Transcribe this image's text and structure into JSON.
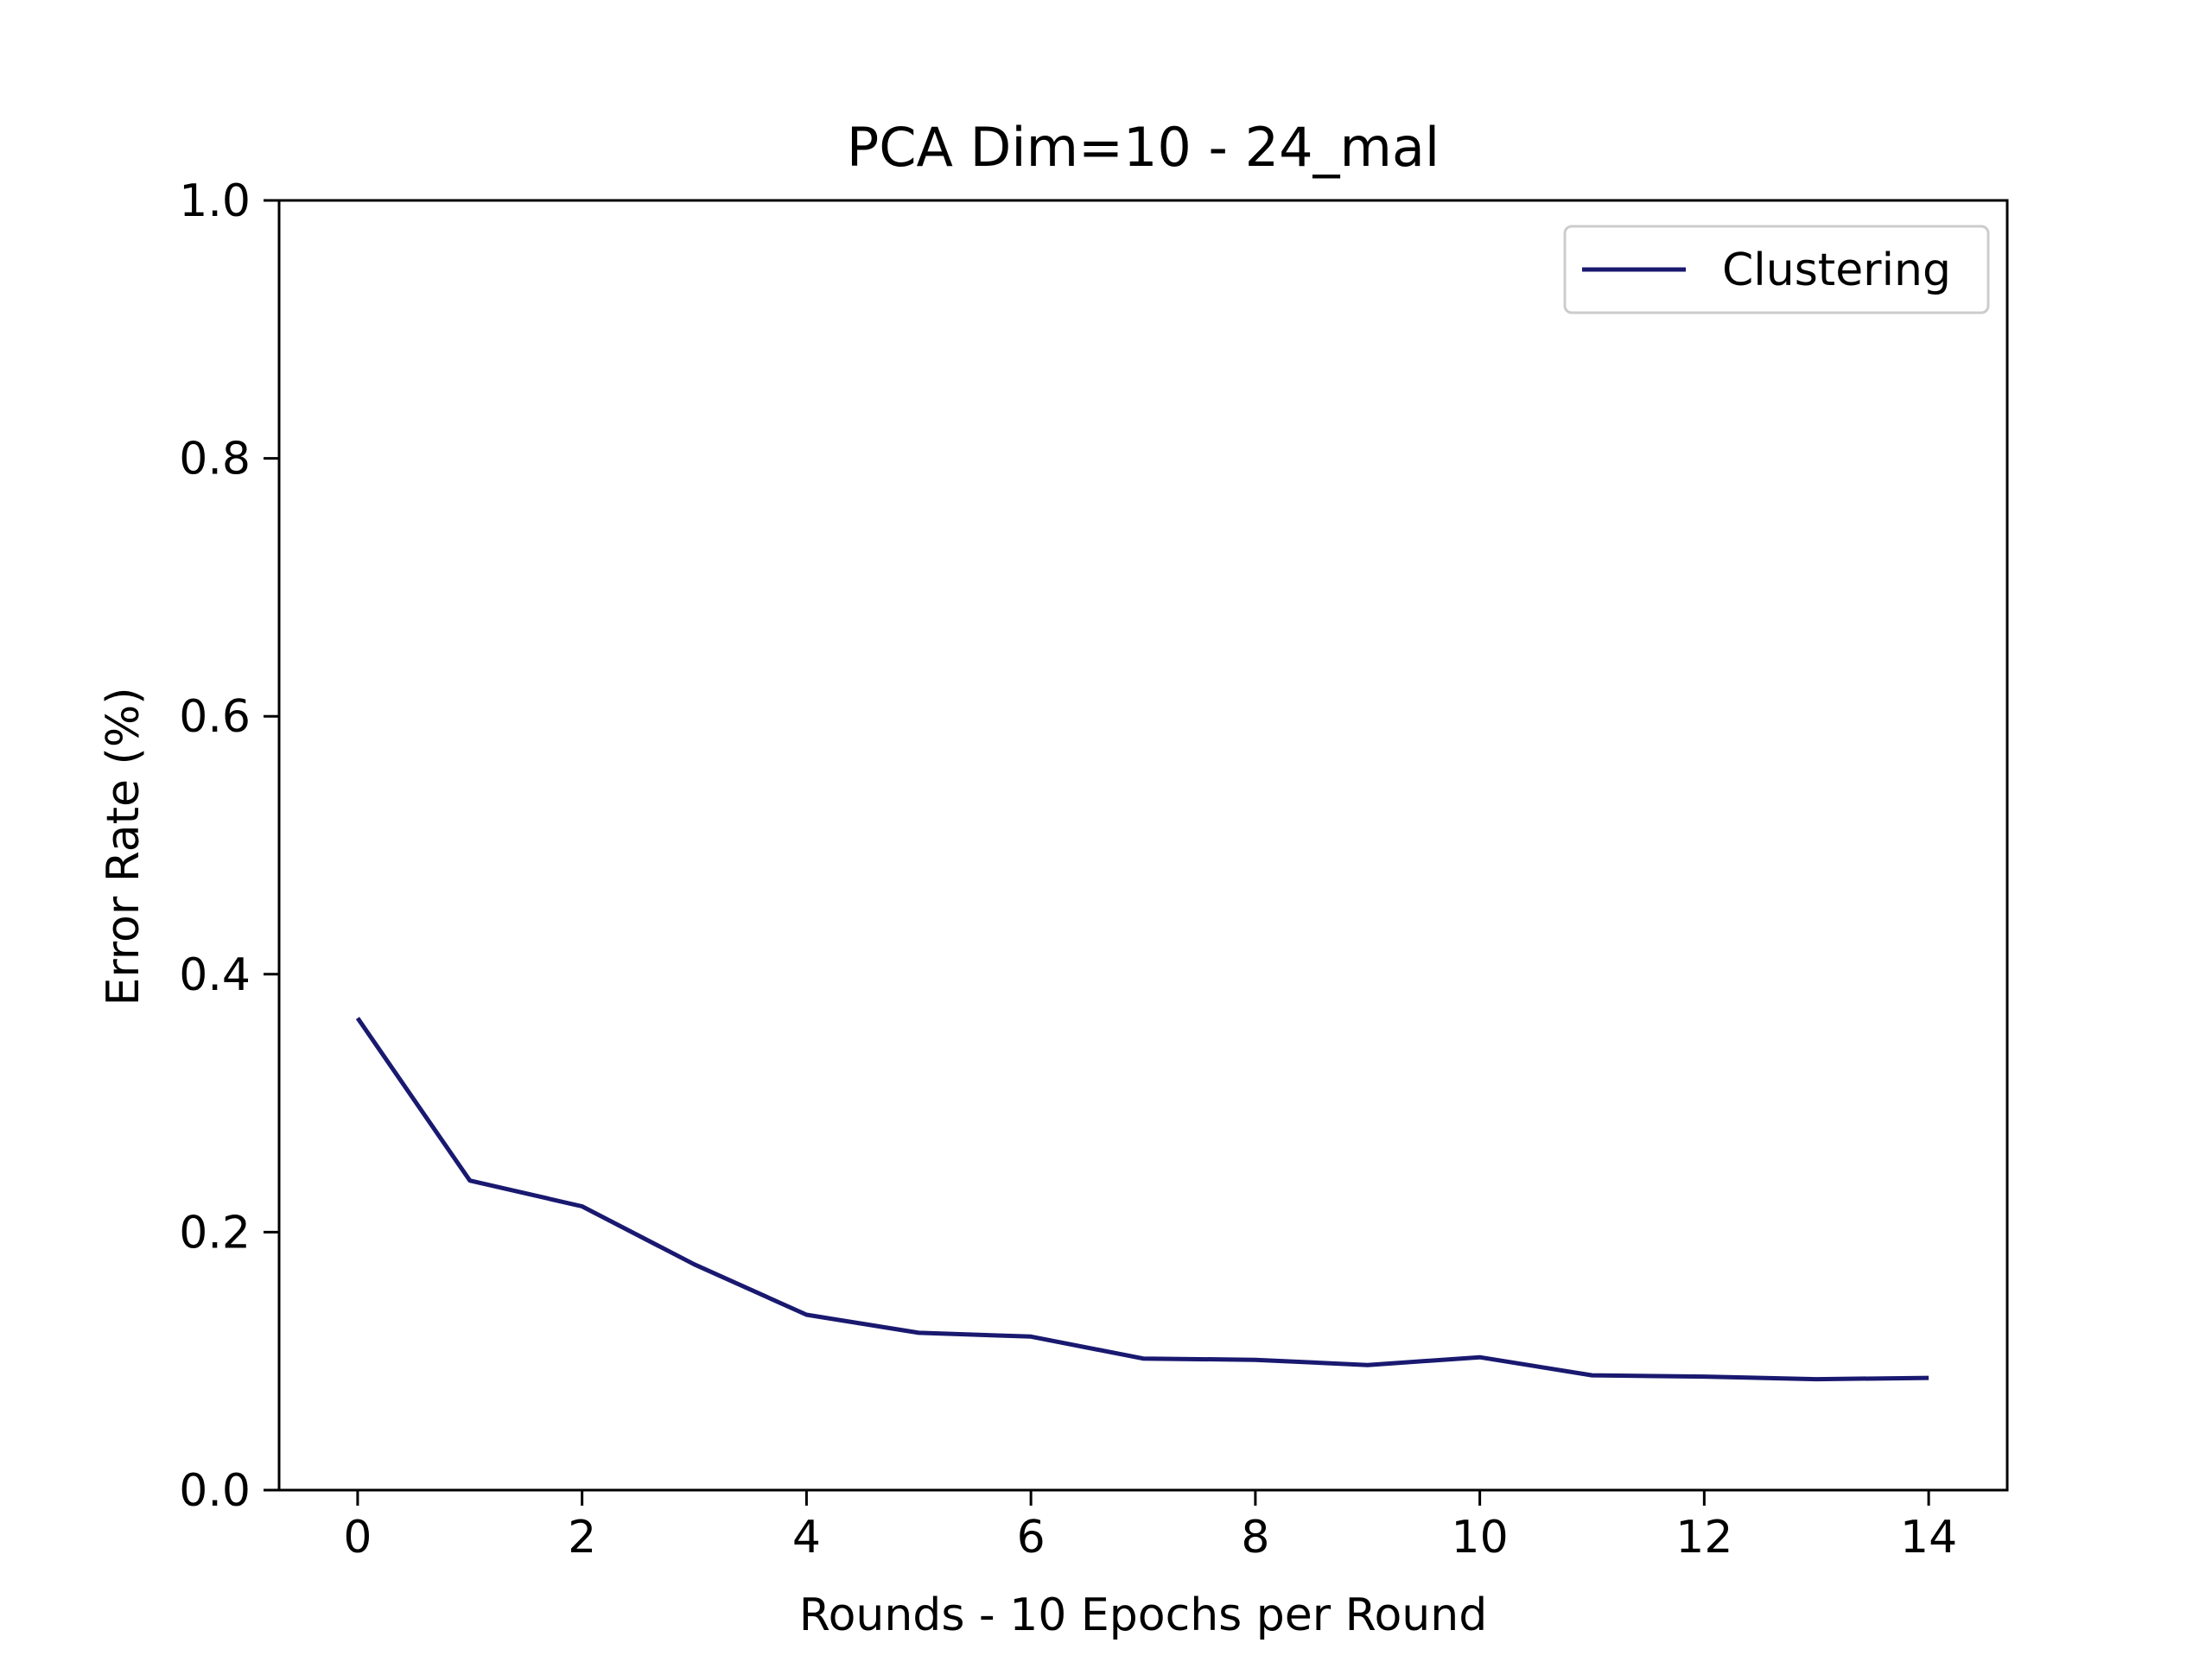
{
  "chart_data": {
    "type": "line",
    "title": "PCA Dim=10 - 24_mal",
    "xlabel": "Rounds - 10 Epochs per Round",
    "ylabel": "Error Rate (%)",
    "xlim": [
      -0.7,
      14.7
    ],
    "ylim": [
      0.0,
      1.0
    ],
    "xticks": [
      0,
      2,
      4,
      6,
      8,
      10,
      12,
      14
    ],
    "xtick_labels": [
      "0",
      "2",
      "4",
      "6",
      "8",
      "10",
      "12",
      "14"
    ],
    "yticks": [
      0.0,
      0.2,
      0.4,
      0.6,
      0.8,
      1.0
    ],
    "ytick_labels": [
      "0.0",
      "0.2",
      "0.4",
      "0.6",
      "0.8",
      "1.0"
    ],
    "grid": false,
    "legend_position": "top-right",
    "x": [
      0,
      1,
      2,
      3,
      4,
      5,
      6,
      7,
      8,
      9,
      10,
      11,
      12,
      13,
      14
    ],
    "series": [
      {
        "name": "Clustering",
        "color": "#191970",
        "values": [
          0.366,
          0.24,
          0.22,
          0.175,
          0.136,
          0.122,
          0.119,
          0.102,
          0.101,
          0.097,
          0.103,
          0.089,
          0.088,
          0.086,
          0.087
        ]
      }
    ]
  }
}
